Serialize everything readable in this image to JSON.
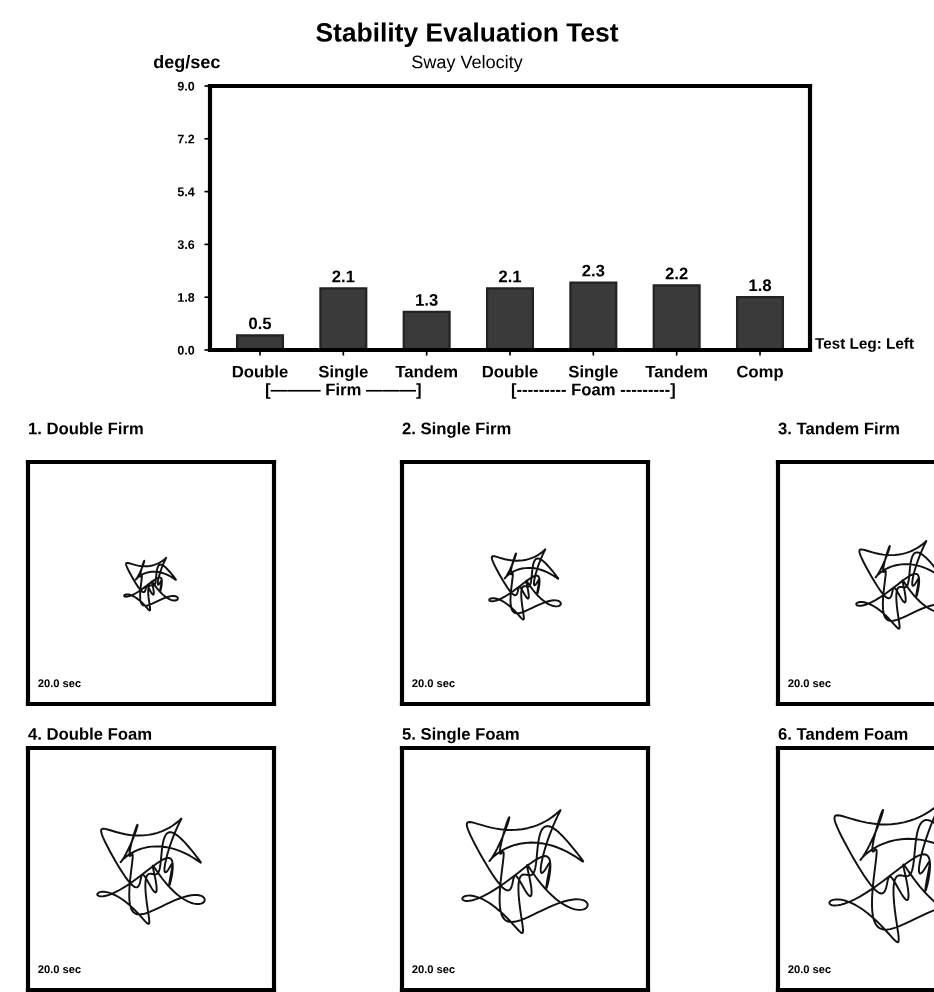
{
  "chart_data": [
    {
      "type": "bar",
      "title": "Stability Evaluation Test",
      "subtitle": "Sway Velocity",
      "ylabel": "deg/sec",
      "categories": [
        "Double",
        "Single",
        "Tandem",
        "Double",
        "Single",
        "Tandem",
        "Comp"
      ],
      "values": [
        0.5,
        2.1,
        1.3,
        2.1,
        2.3,
        2.2,
        1.8
      ],
      "color": "#3a3a3a",
      "ylim": [
        0,
        9
      ],
      "yticks": [
        {
          "value": 0,
          "label": "0.0"
        },
        1.8,
        3.6,
        5.4,
        7.2,
        {
          "value": 9,
          "label": "9.0"
        }
      ],
      "data_labels": true,
      "grid": false,
      "annotations": [
        "[——— Firm ———]",
        "[--------- Foam ---------]",
        "Test Leg: Left"
      ]
    },
    {
      "type": "other",
      "title": "1. Double Firm",
      "annotations": [
        "20.0 sec"
      ]
    },
    {
      "type": "other",
      "title": "2. Single Firm",
      "annotations": [
        "20.0 sec"
      ]
    },
    {
      "type": "other",
      "title": "3. Tandem Firm",
      "annotations": [
        "20.0 sec"
      ]
    },
    {
      "type": "other",
      "title": "4. Double Foam",
      "annotations": [
        "20.0 sec"
      ]
    },
    {
      "type": "other",
      "title": "5. Single Foam",
      "annotations": [
        "20.0 sec"
      ]
    },
    {
      "type": "other",
      "title": "6. Tandem Foam",
      "annotations": [
        "20.0 sec"
      ]
    }
  ]
}
